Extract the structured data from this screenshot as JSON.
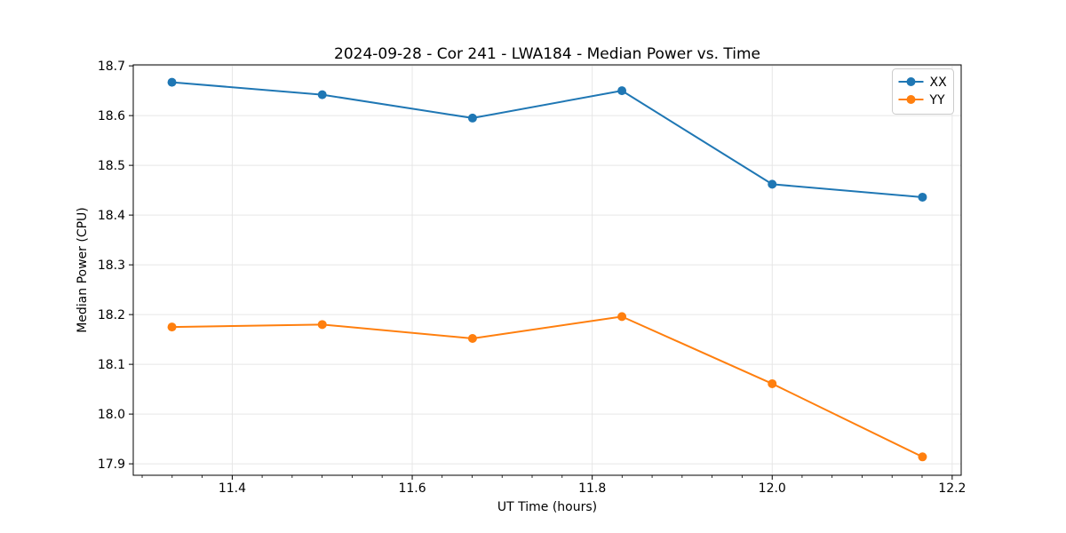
{
  "chart_data": {
    "type": "line",
    "title": "2024-09-28 - Cor 241 - LWA184 - Median Power vs. Time",
    "xlabel": "UT Time (hours)",
    "ylabel": "Median Power (CPU)",
    "x": [
      11.333,
      11.5,
      11.667,
      11.833,
      12.0,
      12.167
    ],
    "series": [
      {
        "name": "XX",
        "color": "#1f77b4",
        "values": [
          18.667,
          18.642,
          18.595,
          18.65,
          18.462,
          18.436
        ]
      },
      {
        "name": "YY",
        "color": "#ff7f0e",
        "values": [
          18.175,
          18.18,
          18.152,
          18.196,
          18.061,
          17.914
        ]
      }
    ],
    "xlim": [
      11.29,
      12.21
    ],
    "ylim": [
      17.877,
      18.702
    ],
    "xticks": [
      11.4,
      11.6,
      11.8,
      12.0,
      12.2
    ],
    "yticks": [
      17.9,
      18.0,
      18.1,
      18.2,
      18.3,
      18.4,
      18.5,
      18.6,
      18.7
    ],
    "x_minor_tick_step": 0.033333,
    "grid": true,
    "legend_position": "upper right",
    "marker": "circle"
  },
  "style_colors": {
    "grid": "#e6e6e6",
    "spine": "#000000",
    "legend_border": "#cccccc",
    "background": "#ffffff"
  }
}
